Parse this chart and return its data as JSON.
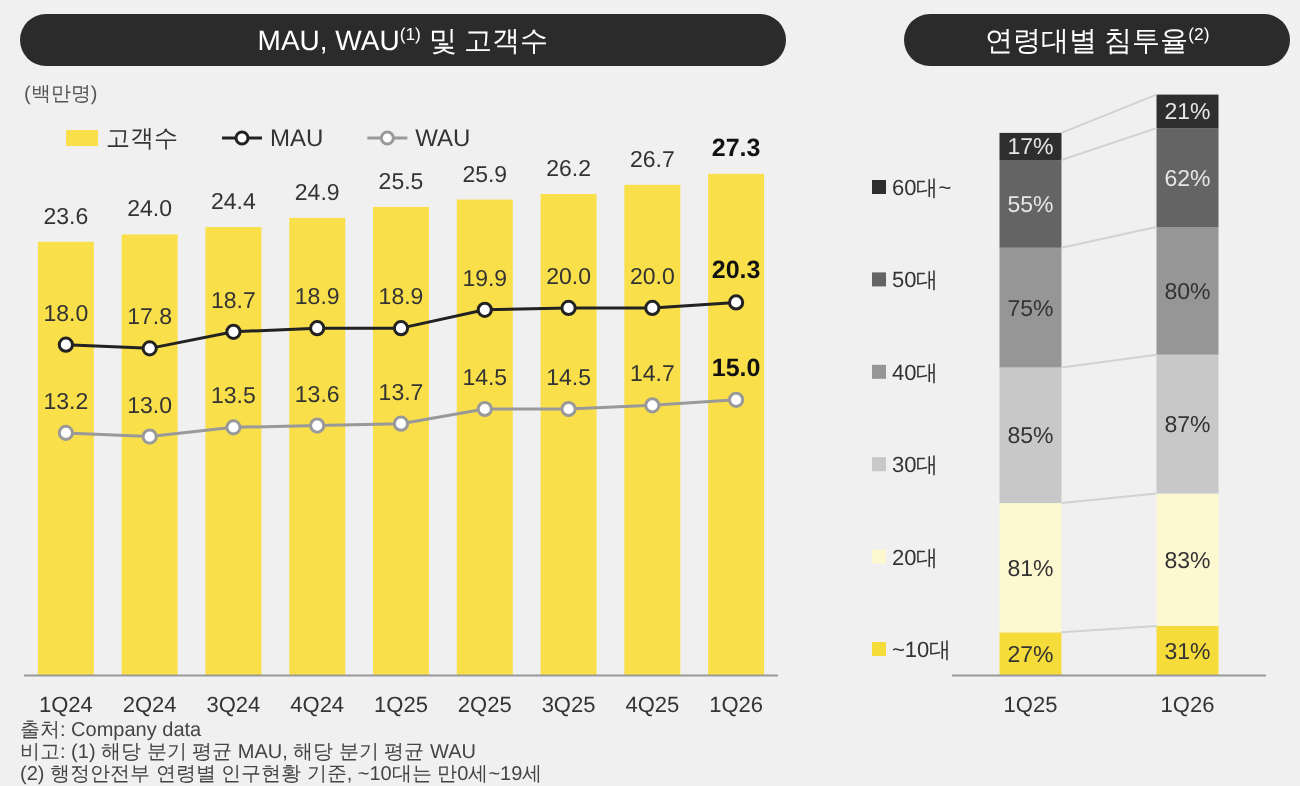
{
  "chart_data": [
    {
      "type": "bar",
      "title": "MAU, WAU$^{(1)}$ 및 고객수",
      "ylabel": "(백만명)",
      "categories": [
        "1Q24",
        "2Q24",
        "3Q24",
        "4Q24",
        "1Q25",
        "2Q25",
        "3Q25",
        "4Q25",
        "1Q26"
      ],
      "series": [
        {
          "name": "고객수",
          "type": "bar",
          "color": "#f9e04b",
          "values": [
            23.6,
            24.0,
            24.4,
            24.9,
            25.5,
            25.9,
            26.2,
            26.7,
            27.3
          ],
          "value_labels": [
            "23.6",
            "24.0",
            "24.4",
            "24.9",
            "25.5",
            "25.9",
            "26.2",
            "26.7",
            "27.3"
          ]
        },
        {
          "name": "MAU",
          "type": "line",
          "color": "#222222",
          "values": [
            18.0,
            17.8,
            18.7,
            18.9,
            18.9,
            19.9,
            20.0,
            20.0,
            20.3
          ],
          "value_labels": [
            "18.0",
            "17.8",
            "18.7",
            "18.9",
            "18.9",
            "19.9",
            "20.0",
            "20.0",
            "20.3"
          ]
        },
        {
          "name": "WAU",
          "type": "line",
          "color": "#999999",
          "values": [
            13.2,
            13.0,
            13.5,
            13.6,
            13.7,
            14.5,
            14.5,
            14.7,
            15.0
          ],
          "value_labels": [
            "13.2",
            "13.0",
            "13.5",
            "13.6",
            "13.7",
            "14.5",
            "14.5",
            "14.7",
            "15.0"
          ]
        }
      ],
      "marker": "circle",
      "legend": "top left",
      "tick_labels": "x",
      "annotations": [
        "출처: Company data",
        "비고: (1) 해당 분기 평균 MAU, 해당 분기 평균 WAU",
        "(2) 행정안전부 연령별 인구현황 기준, ~10대는 만0세~19세"
      ]
    },
    {
      "type": "bar",
      "stacked": true,
      "title": "연령대별 침투율$^{(2)}$",
      "categories": [
        "1Q25",
        "1Q26"
      ],
      "series": [
        {
          "name": "~10대",
          "color": "#f5dc3a",
          "values": [
            27,
            31
          ],
          "value_labels": [
            "27%",
            "31%"
          ]
        },
        {
          "name": "20대",
          "color": "#fdf8d0",
          "values": [
            81,
            83
          ],
          "value_labels": [
            "81%",
            "83%"
          ]
        },
        {
          "name": "30대",
          "color": "#c8c8c8",
          "values": [
            85,
            87
          ],
          "value_labels": [
            "85%",
            "87%"
          ]
        },
        {
          "name": "40대",
          "color": "#969696",
          "values": [
            75,
            80
          ],
          "value_labels": [
            "75%",
            "80%"
          ]
        },
        {
          "name": "50대",
          "color": "#646464",
          "values": [
            55,
            62
          ],
          "value_labels": [
            "55%",
            "62%"
          ]
        },
        {
          "name": "60대~",
          "color": "#2e2e2e",
          "values": [
            17,
            21
          ],
          "value_labels": [
            "17%",
            "21%"
          ]
        }
      ],
      "legend": "left"
    }
  ]
}
